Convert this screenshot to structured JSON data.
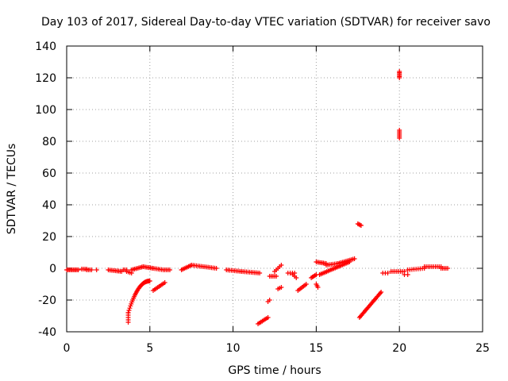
{
  "chart_data": {
    "type": "scatter",
    "title": "Day 103 of 2017, Sidereal Day-to-day VTEC variation (SDTVAR) for receiver savo",
    "xlabel": "GPS time / hours",
    "ylabel": "SDTVAR / TECUs",
    "xlim": [
      0,
      25
    ],
    "ylim": [
      -40,
      140
    ],
    "xticks": [
      0,
      5,
      10,
      15,
      20,
      25
    ],
    "yticks": [
      -40,
      -20,
      0,
      20,
      40,
      60,
      80,
      100,
      120,
      140
    ],
    "grid": true,
    "marker": "plus",
    "marker_color": "#ff0000",
    "series": [
      {
        "name": "SDTVAR",
        "segments": [
          {
            "x0": 0.0,
            "x1": 0.7,
            "y0": -1,
            "y1": -1,
            "n": 10
          },
          {
            "x0": 0.9,
            "x1": 1.2,
            "y0": -0.5,
            "y1": -0.5,
            "n": 4
          },
          {
            "x0": 1.2,
            "x1": 1.5,
            "y0": -1,
            "y1": -1,
            "n": 4
          },
          {
            "x0": 1.8,
            "x1": 1.8,
            "y0": -1,
            "y1": -1,
            "n": 1
          },
          {
            "x0": 2.5,
            "x1": 3.3,
            "y0": -1,
            "y1": -2,
            "n": 10
          },
          {
            "x0": 3.4,
            "x1": 3.6,
            "y0": -1,
            "y1": -1,
            "n": 3
          },
          {
            "x0": 3.6,
            "x1": 3.9,
            "y0": -2,
            "y1": -3,
            "n": 4
          },
          {
            "x0": 3.9,
            "x1": 4.6,
            "y0": -1,
            "y1": 1,
            "n": 9
          },
          {
            "x0": 4.6,
            "x1": 5.2,
            "y0": 1,
            "y1": 0,
            "n": 8
          },
          {
            "x0": 5.2,
            "x1": 5.8,
            "y0": 0,
            "y1": -1,
            "n": 7
          },
          {
            "x0": 5.9,
            "x1": 6.2,
            "y0": -1,
            "y1": -1,
            "n": 4
          },
          {
            "x0": 6.9,
            "x1": 7.5,
            "y0": -1,
            "y1": 2,
            "n": 8
          },
          {
            "x0": 7.5,
            "x1": 9.0,
            "y0": 2,
            "y1": 0,
            "n": 16
          },
          {
            "x0": 9.6,
            "x1": 10.5,
            "y0": -1,
            "y1": -2,
            "n": 10
          },
          {
            "x0": 10.5,
            "x1": 11.6,
            "y0": -2,
            "y1": -3,
            "n": 12
          },
          {
            "x0": 12.2,
            "x1": 12.6,
            "y0": -5,
            "y1": -5,
            "n": 5
          },
          {
            "x0": 12.5,
            "x1": 12.9,
            "y0": -2,
            "y1": 2,
            "n": 5
          },
          {
            "x0": 12.7,
            "x1": 12.9,
            "y0": -13,
            "y1": -12,
            "n": 3
          },
          {
            "x0": 13.3,
            "x1": 13.7,
            "y0": -3,
            "y1": -3,
            "n": 4
          },
          {
            "x0": 13.6,
            "x1": 13.8,
            "y0": -4,
            "y1": -6,
            "n": 3
          },
          {
            "x0": 14.7,
            "x1": 15.0,
            "y0": -6,
            "y1": -4,
            "n": 5
          },
          {
            "x0": 15.0,
            "x1": 15.1,
            "y0": -10,
            "y1": -12,
            "n": 3
          },
          {
            "x0": 15.0,
            "x1": 15.6,
            "y0": 4,
            "y1": 3,
            "n": 8
          },
          {
            "x0": 15.6,
            "x1": 16.3,
            "y0": 2,
            "y1": 3,
            "n": 8
          },
          {
            "x0": 16.3,
            "x1": 17.3,
            "y0": 3,
            "y1": 6,
            "n": 12
          },
          {
            "x0": 17.5,
            "x1": 17.7,
            "y0": 28,
            "y1": 27,
            "n": 4
          },
          {
            "x0": 19.0,
            "x1": 19.3,
            "y0": -3,
            "y1": -3,
            "n": 3
          },
          {
            "x0": 19.5,
            "x1": 20.3,
            "y0": -2,
            "y1": -2,
            "n": 8
          },
          {
            "x0": 20.0,
            "x1": 20.0,
            "y0": 124,
            "y1": 120,
            "n": 6
          },
          {
            "x0": 20.0,
            "x1": 20.0,
            "y0": 87,
            "y1": 82,
            "n": 6
          },
          {
            "x0": 20.3,
            "x1": 20.5,
            "y0": -4,
            "y1": -4,
            "n": 2
          },
          {
            "x0": 20.5,
            "x1": 21.5,
            "y0": -1,
            "y1": 0,
            "n": 9
          },
          {
            "x0": 21.5,
            "x1": 22.5,
            "y0": 1,
            "y1": 1,
            "n": 10
          },
          {
            "x0": 22.5,
            "x1": 22.9,
            "y0": 0,
            "y1": 0,
            "n": 5
          },
          {
            "x0": 3.7,
            "x1": 3.7,
            "y0": -34,
            "y1": -28,
            "n": 5
          },
          {
            "x0": 11.5,
            "x1": 12.1,
            "y0": -35,
            "y1": -31,
            "n": 8
          },
          {
            "x0": 12.1,
            "x1": 12.2,
            "y0": -21,
            "y1": -20,
            "n": 2
          },
          {
            "x0": 13.9,
            "x1": 14.4,
            "y0": -14,
            "y1": -10,
            "n": 7
          },
          {
            "x0": 15.2,
            "x1": 17.0,
            "y0": -4,
            "y1": 4,
            "n": 22
          },
          {
            "x0": 5.2,
            "x1": 5.9,
            "y0": -14,
            "y1": -9,
            "n": 9
          },
          {
            "x0": 17.6,
            "x1": 18.9,
            "y0": -31,
            "y1": -15,
            "n": 24
          }
        ],
        "curves": [
          {
            "x0": 3.7,
            "x1": 5.0,
            "y_start": -28,
            "y_end": -8,
            "n": 30
          }
        ]
      }
    ]
  }
}
